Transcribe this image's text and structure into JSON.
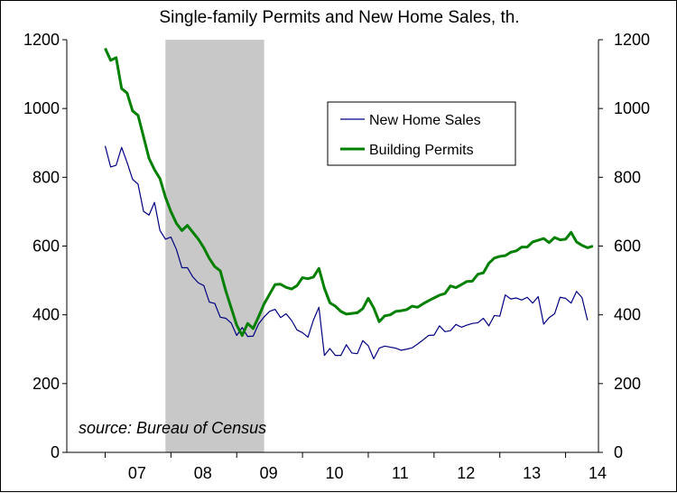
{
  "chart_data": {
    "type": "line",
    "title": "Single-family Permits and New Home Sales, th.",
    "xlabel": "",
    "ylabel": "",
    "ylim": [
      0,
      1200
    ],
    "yticks": [
      0,
      200,
      400,
      600,
      800,
      1000,
      1200
    ],
    "y_right_ticks": [
      0,
      200,
      400,
      600,
      800,
      1000,
      1200
    ],
    "x_tick_labels": [
      "07",
      "08",
      "09",
      "10",
      "11",
      "12",
      "13",
      "14"
    ],
    "grid": false,
    "legend_position": "top-right",
    "recession_shading": {
      "start": "2007-12",
      "end": "2009-06"
    },
    "annotation": "source: Bureau of Census",
    "series_colors": {
      "New Home Sales": "#000080",
      "Building Permits": "#008000"
    },
    "series": [
      {
        "name": "New Home Sales",
        "values": [
          891,
          830,
          835,
          887,
          843,
          794,
          780,
          701,
          690,
          727,
          645,
          620,
          626,
          590,
          537,
          537,
          510,
          493,
          485,
          437,
          433,
          393,
          390,
          376,
          340,
          363,
          337,
          338,
          374,
          394,
          410,
          416,
          392,
          403,
          384,
          356,
          348,
          335,
          385,
          422,
          282,
          302,
          282,
          282,
          313,
          289,
          287,
          325,
          310,
          272,
          303,
          309,
          306,
          303,
          297,
          300,
          304,
          315,
          327,
          340,
          341,
          368,
          351,
          354,
          372,
          364,
          370,
          375,
          377,
          390,
          368,
          398,
          396,
          458,
          446,
          449,
          443,
          451,
          434,
          453,
          373,
          392,
          403,
          451,
          448,
          434,
          468,
          450,
          384
        ]
      },
      {
        "name": "Building Permits",
        "values": [
          1175,
          1140,
          1148,
          1058,
          1045,
          993,
          980,
          918,
          855,
          822,
          796,
          742,
          700,
          666,
          645,
          660,
          640,
          620,
          595,
          564,
          540,
          528,
          470,
          420,
          370,
          340,
          375,
          360,
          395,
          432,
          460,
          488,
          489,
          480,
          475,
          485,
          508,
          505,
          510,
          535,
          477,
          435,
          425,
          410,
          402,
          404,
          406,
          418,
          448,
          420,
          380,
          397,
          400,
          410,
          412,
          415,
          425,
          422,
          432,
          441,
          449,
          457,
          462,
          484,
          479,
          488,
          497,
          498,
          518,
          522,
          550,
          565,
          570,
          572,
          582,
          586,
          597,
          597,
          612,
          617,
          622,
          610,
          625,
          618,
          620,
          640,
          612,
          602,
          595,
          600
        ]
      }
    ]
  }
}
